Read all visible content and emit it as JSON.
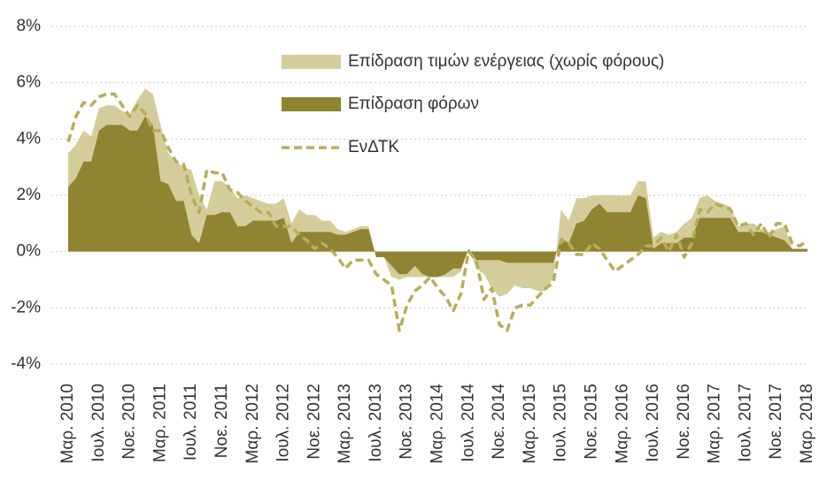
{
  "chart_data": {
    "type": "area",
    "categories": [
      "Μαρ. 2010",
      null,
      null,
      null,
      "Ιουλ. 2010",
      null,
      null,
      null,
      "Νοε. 2010",
      null,
      null,
      null,
      "Μαρ. 2011",
      null,
      null,
      null,
      "Ιουλ. 2011",
      null,
      null,
      null,
      "Νοε. 2011",
      null,
      null,
      null,
      "Μαρ. 2012",
      null,
      null,
      null,
      "Ιουλ. 2012",
      null,
      null,
      null,
      "Νοε. 2012",
      null,
      null,
      null,
      "Μαρ. 2013",
      null,
      null,
      null,
      "Ιουλ. 2013",
      null,
      null,
      null,
      "Νοε. 2013",
      null,
      null,
      null,
      "Μαρ. 2014",
      null,
      null,
      null,
      "Ιουλ. 2014",
      null,
      null,
      null,
      "Νοε. 2014",
      null,
      null,
      null,
      "Μαρ. 2015",
      null,
      null,
      null,
      "Ιουλ. 2015",
      null,
      null,
      null,
      "Νοε. 2015",
      null,
      null,
      null,
      "Μαρ. 2016",
      null,
      null,
      null,
      "Ιουλ. 2016",
      null,
      null,
      null,
      "Νοε. 2016",
      null,
      null,
      null,
      "Μαρ. 2017",
      null,
      null,
      null,
      "Ιουλ. 2017",
      null,
      null,
      null,
      "Νοε. 2017",
      null,
      null,
      null,
      "Μαρ. 2018"
    ],
    "series": [
      {
        "name": "Επίδραση τιμών ενέργειας (χωρίς φόρους)",
        "type": "area",
        "color": "#d4cd9b",
        "values": [
          3.5,
          3.8,
          4.3,
          4.1,
          5.1,
          5.2,
          5.2,
          5.0,
          4.9,
          5.4,
          5.8,
          5.6,
          4.5,
          3.5,
          3.2,
          3.0,
          2.9,
          2.0,
          1.5,
          2.5,
          2.5,
          2.3,
          1.9,
          2.0,
          1.9,
          1.8,
          1.7,
          1.7,
          1.9,
          1.0,
          1.5,
          1.3,
          1.3,
          1.1,
          1.1,
          0.8,
          0.7,
          0.8,
          0.9,
          0.9,
          -0.2,
          -0.2,
          -0.9,
          -1.0,
          -0.9,
          -0.9,
          -0.9,
          -0.9,
          -0.9,
          -0.9,
          -0.9,
          -0.7,
          0.1,
          -0.6,
          -0.8,
          -1.3,
          -1.6,
          -1.5,
          -1.2,
          -1.3,
          -1.3,
          -1.4,
          -1.4,
          -0.9,
          1.5,
          1.1,
          1.9,
          1.9,
          2.0,
          2.0,
          2.0,
          2.0,
          2.0,
          2.0,
          2.5,
          2.5,
          0.5,
          0.7,
          0.6,
          0.7,
          1.0,
          1.2,
          1.9,
          2.0,
          1.8,
          1.7,
          1.6,
          0.9,
          1.0,
          1.0,
          0.8,
          0.7,
          0.8,
          0.9,
          0.1,
          0.1,
          0.1
        ]
      },
      {
        "name": "Επίδραση φόρων",
        "type": "area",
        "color": "#8f8431",
        "values": [
          2.3,
          2.6,
          3.2,
          3.2,
          4.3,
          4.5,
          4.5,
          4.5,
          4.3,
          4.3,
          4.8,
          4.5,
          2.5,
          2.4,
          1.8,
          1.8,
          0.6,
          0.3,
          1.3,
          1.3,
          1.4,
          1.4,
          0.9,
          0.9,
          1.1,
          1.1,
          1.1,
          1.1,
          1.2,
          0.3,
          0.7,
          0.7,
          0.7,
          0.7,
          0.7,
          0.6,
          0.6,
          0.7,
          0.8,
          0.8,
          -0.2,
          -0.2,
          -0.5,
          -0.8,
          -0.8,
          -0.5,
          -0.8,
          -0.9,
          -0.9,
          -0.8,
          -0.6,
          -0.6,
          0.1,
          -0.3,
          -0.3,
          -0.3,
          -0.3,
          -0.4,
          -0.4,
          -0.4,
          -0.4,
          -0.4,
          -0.4,
          -0.4,
          0.5,
          0.3,
          1.0,
          1.1,
          1.5,
          1.7,
          1.4,
          1.4,
          1.4,
          1.4,
          2.0,
          1.9,
          0.1,
          0.3,
          0.3,
          0.3,
          0.5,
          0.5,
          1.2,
          1.2,
          1.2,
          1.2,
          1.2,
          0.7,
          0.7,
          0.7,
          0.7,
          0.6,
          0.5,
          0.4,
          0.1,
          0.1,
          0.1
        ]
      },
      {
        "name": "ΕνΔΤΚ",
        "type": "line",
        "dashed": true,
        "color": "#b8ad59",
        "values": [
          3.9,
          4.8,
          5.3,
          5.2,
          5.5,
          5.6,
          5.6,
          5.2,
          4.8,
          5.2,
          4.9,
          4.3,
          4.3,
          3.7,
          3.2,
          3.1,
          2.0,
          1.4,
          2.9,
          2.8,
          2.8,
          2.2,
          2.1,
          1.8,
          1.6,
          1.4,
          1.4,
          0.9,
          0.9,
          0.9,
          0.6,
          0.4,
          0.1,
          0.3,
          0.1,
          -0.2,
          -0.6,
          -0.3,
          -0.3,
          -0.3,
          -0.8,
          -1.0,
          -1.2,
          -2.8,
          -1.9,
          -1.4,
          -1.2,
          -0.9,
          -1.3,
          -1.6,
          -2.1,
          -1.5,
          0.0,
          -0.3,
          -1.7,
          -1.3,
          -2.6,
          -2.8,
          -2.0,
          -1.9,
          -1.9,
          -1.6,
          -1.3,
          -1.1,
          0.4,
          0.3,
          -0.1,
          -0.1,
          0.3,
          0.1,
          -0.3,
          -0.7,
          -0.5,
          -0.3,
          -0.1,
          0.2,
          0.2,
          0.5,
          0.0,
          0.6,
          -0.2,
          0.3,
          1.5,
          1.4,
          1.7,
          1.6,
          1.5,
          0.9,
          1.0,
          0.6,
          1.0,
          0.5,
          1.0,
          1.0,
          0.3,
          0.2,
          0.4
        ]
      }
    ],
    "ylim": [
      -4,
      8
    ],
    "yticks": [
      {
        "value": -4,
        "label": "-4%"
      },
      {
        "value": -2,
        "label": "-2%"
      },
      {
        "value": 0,
        "label": "0%"
      },
      {
        "value": 2,
        "label": "2%"
      },
      {
        "value": 4,
        "label": "4%"
      },
      {
        "value": 6,
        "label": "6%"
      },
      {
        "value": 8,
        "label": "8%"
      }
    ],
    "grid": true,
    "legend": "top-right"
  }
}
